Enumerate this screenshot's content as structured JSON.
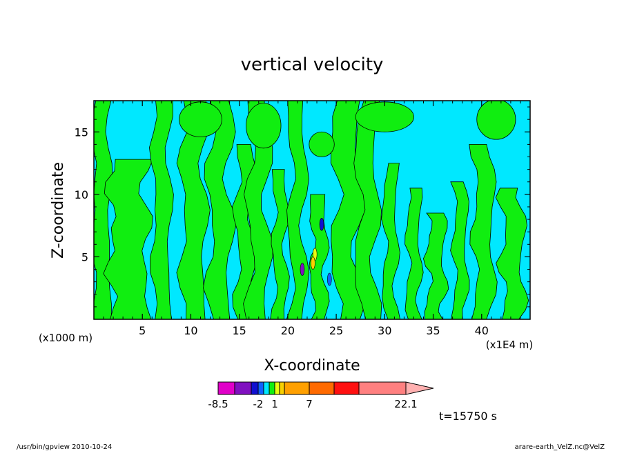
{
  "chart_data": {
    "type": "heatmap",
    "title": "vertical velocity",
    "xlabel": "X-coordinate",
    "ylabel": "Z-coordinate",
    "x_unit_note": "(x1E4 m)",
    "y_unit_note": "(x1000 m)",
    "xlim": [
      0,
      45
    ],
    "ylim": [
      0,
      17.5
    ],
    "x_ticks": [
      5,
      10,
      15,
      20,
      25,
      30,
      35,
      40
    ],
    "y_ticks": [
      5,
      10,
      15
    ],
    "colorbar": {
      "levels": [
        -8.5,
        -6,
        -4,
        -2,
        -1,
        0,
        1,
        2,
        3,
        7,
        12,
        17,
        22.1
      ],
      "colors": [
        "#e000c8",
        "#8010c0",
        "#1010d0",
        "#1060ff",
        "#00e8ff",
        "#10ee10",
        "#e8ff10",
        "#f8d000",
        "#ffa000",
        "#ff6a00",
        "#ff1010",
        "#ff8080",
        "#ffb0b0"
      ],
      "tick_labels": [
        "-8.5",
        "-2",
        "1",
        "7",
        "22.1"
      ]
    },
    "z_bands_note": "pattern of alternating updraft (green, 0 to 1) and weak downdraft (cyan, -1 to 0) columns",
    "grid": false,
    "legend_position": "bottom"
  },
  "annotations": {
    "time": "t=15750 s",
    "footer_left": "/usr/bin/gpview   2010-10-24",
    "footer_right": "arare-earth_VelZ.nc@VelZ"
  }
}
